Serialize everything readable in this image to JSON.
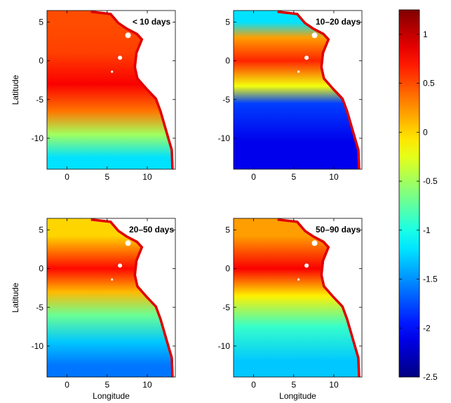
{
  "chart_data": {
    "type": "heatmap",
    "panels": [
      {
        "label": "< 10 days",
        "xlim": [
          -2.5,
          13.5
        ],
        "ylim": [
          -14,
          6.5
        ],
        "xticks": [
          0,
          5,
          10
        ],
        "yticks": [
          5,
          0,
          -5,
          -10
        ],
        "ylabel": "Latitude",
        "xlabel": "",
        "field_bands": [
          {
            "lat_north": 6.5,
            "lat_south": 3.0,
            "value": 0.5
          },
          {
            "lat_north": 3.0,
            "lat_south": -1.0,
            "value": 0.55
          },
          {
            "lat_north": -1.0,
            "lat_south": -5.0,
            "value": 0.8
          },
          {
            "lat_north": -5.0,
            "lat_south": -8.0,
            "value": 0.35
          },
          {
            "lat_north": -8.0,
            "lat_south": -11.0,
            "value": -0.5
          },
          {
            "lat_north": -11.0,
            "lat_south": -14.0,
            "value": -1.2
          }
        ]
      },
      {
        "label": "10–20 days",
        "xlim": [
          -2.5,
          13.5
        ],
        "ylim": [
          -14,
          6.5
        ],
        "xticks": [
          0,
          5,
          10
        ],
        "yticks": [
          5,
          0,
          -5,
          -10
        ],
        "ylabel": "",
        "xlabel": "",
        "field_bands": [
          {
            "lat_north": 6.5,
            "lat_south": 3.5,
            "value": -1.2
          },
          {
            "lat_north": 3.5,
            "lat_south": 2.5,
            "value": 0.2
          },
          {
            "lat_north": 2.5,
            "lat_south": -2.5,
            "value": 0.65
          },
          {
            "lat_north": -2.5,
            "lat_south": -4.0,
            "value": -0.2
          },
          {
            "lat_north": -4.0,
            "lat_south": -7.0,
            "value": -1.8
          },
          {
            "lat_north": -7.0,
            "lat_south": -14.0,
            "value": -2.1
          }
        ]
      },
      {
        "label": "20–50 days",
        "xlim": [
          -2.5,
          13.5
        ],
        "ylim": [
          -14,
          6.5
        ],
        "xticks": [
          0,
          5,
          10
        ],
        "yticks": [
          5,
          0,
          -5,
          -10
        ],
        "ylabel": "Latitude",
        "xlabel": "Longitude",
        "field_bands": [
          {
            "lat_north": 6.5,
            "lat_south": 2.0,
            "value": 0.0
          },
          {
            "lat_north": 2.0,
            "lat_south": -2.0,
            "value": 0.75
          },
          {
            "lat_north": -2.0,
            "lat_south": -4.0,
            "value": 0.1
          },
          {
            "lat_north": -4.0,
            "lat_south": -8.0,
            "value": -0.7
          },
          {
            "lat_north": -8.0,
            "lat_south": -11.0,
            "value": -1.3
          },
          {
            "lat_north": -11.0,
            "lat_south": -14.0,
            "value": -1.6
          }
        ]
      },
      {
        "label": "50–90 days",
        "xlim": [
          -2.5,
          13.5
        ],
        "ylim": [
          -14,
          6.5
        ],
        "xticks": [
          0,
          5,
          10
        ],
        "yticks": [
          5,
          0,
          -5,
          -10
        ],
        "ylabel": "",
        "xlabel": "Longitude",
        "field_bands": [
          {
            "lat_north": 6.5,
            "lat_south": 2.0,
            "value": 0.2
          },
          {
            "lat_north": 2.0,
            "lat_south": -2.0,
            "value": 0.8
          },
          {
            "lat_north": -2.0,
            "lat_south": -5.0,
            "value": -0.1
          },
          {
            "lat_north": -5.0,
            "lat_south": -10.0,
            "value": -0.9
          },
          {
            "lat_north": -10.0,
            "lat_south": -14.0,
            "value": -1.3
          }
        ]
      }
    ],
    "colorbar": {
      "range": [
        -2.5,
        1.25
      ],
      "ticks": [
        1,
        0.5,
        0,
        -0.5,
        -1,
        -1.5,
        -2,
        -2.5
      ],
      "tick_labels": [
        "1",
        "0.5",
        "0",
        "-0.5",
        "-1",
        "-1.5",
        "-2",
        "-2.5"
      ],
      "colormap": "jet"
    }
  }
}
